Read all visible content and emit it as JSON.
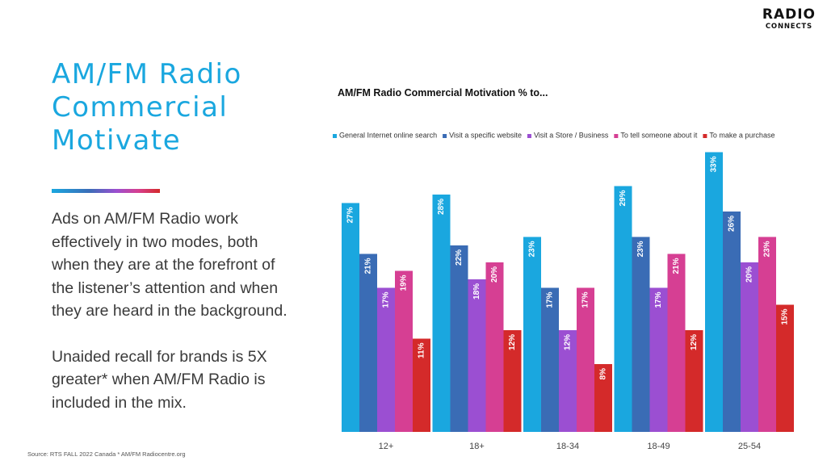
{
  "logo": {
    "line1": "RADIO",
    "line2": "CONNECTS"
  },
  "title": "AM/FM Radio Commercial Motivate",
  "body": {
    "paragraph1": "Ads on AM/FM Radio work effectively in two modes, both when they are at the forefront of the listener’s attention and when they are heard in the background.",
    "paragraph2": "Unaided recall for brands is 5X greater* when AM/FM Radio is included in the mix."
  },
  "source": "Source:  RTS FALL 2022 Canada * AM/FM Radiocentre.org",
  "chart_data": {
    "type": "bar",
    "title": "AM/FM Radio Commercial Motivation % to...",
    "categories": [
      "12+",
      "18+",
      "18-34",
      "18-49",
      "25-54"
    ],
    "series": [
      {
        "name": "General Internet online search",
        "color": "#1aa7df",
        "values": [
          27,
          28,
          23,
          29,
          33
        ]
      },
      {
        "name": "Visit a specific website",
        "color": "#3a6cb5",
        "values": [
          21,
          22,
          17,
          23,
          26
        ]
      },
      {
        "name": "Visit a Store / Business",
        "color": "#9b4fd2",
        "values": [
          17,
          18,
          12,
          17,
          20
        ]
      },
      {
        "name": "To tell someone about it",
        "color": "#d63f93",
        "values": [
          19,
          20,
          17,
          21,
          23
        ]
      },
      {
        "name": "To make a purchase",
        "color": "#d42a2a",
        "values": [
          11,
          12,
          8,
          12,
          15
        ]
      }
    ],
    "value_suffix": "%",
    "legend_position": "top",
    "grid": false,
    "ylim": [
      0,
      35
    ]
  }
}
